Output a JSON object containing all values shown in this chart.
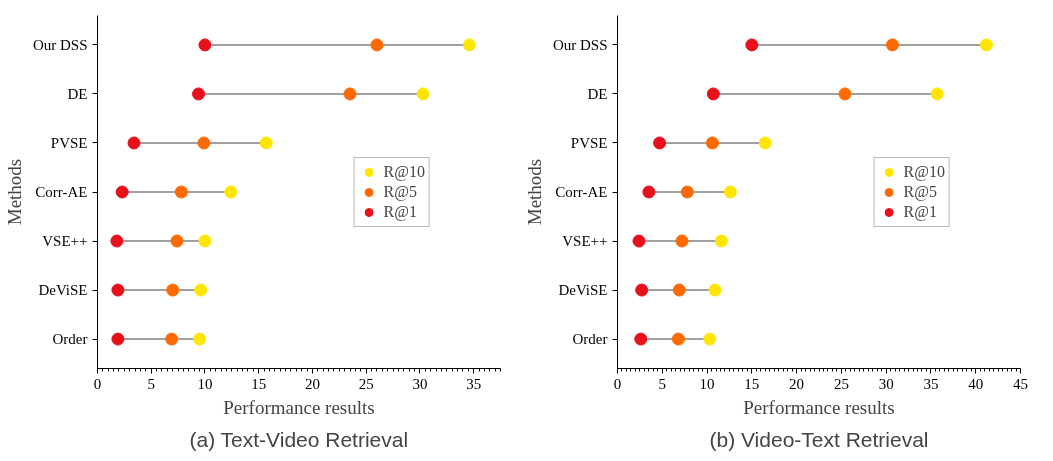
{
  "chart_data": [
    {
      "type": "scatter",
      "title": "(a) Text-Video Retrieval",
      "xlabel": "Performance results",
      "ylabel": "Methods",
      "orientation": "horizontal",
      "categories": [
        "Our DSS",
        "DE",
        "PVSE",
        "Corr-AE",
        "VSE++",
        "DeViSE",
        "Order"
      ],
      "xlim": [
        0,
        37.5
      ],
      "xticks": [
        0,
        5,
        10,
        15,
        20,
        25,
        30,
        35
      ],
      "legend": "right",
      "grid": false,
      "marker": "circle",
      "series": [
        {
          "name": "R@10",
          "color": "#ffe600",
          "values": [
            34.6,
            30.3,
            15.7,
            12.4,
            10.0,
            9.6,
            9.5
          ]
        },
        {
          "name": "R@5",
          "color": "#ff6a00",
          "values": [
            26.0,
            23.5,
            9.9,
            7.8,
            7.4,
            7.0,
            6.9
          ]
        },
        {
          "name": "R@1",
          "color": "#e8101a",
          "values": [
            10.0,
            9.4,
            3.4,
            2.3,
            1.8,
            1.9,
            1.9
          ]
        }
      ]
    },
    {
      "type": "scatter",
      "title": "(b) Video-Text Retrieval",
      "xlabel": "Performance results",
      "ylabel": "Methods",
      "orientation": "horizontal",
      "categories": [
        "Our DSS",
        "DE",
        "PVSE",
        "Corr-AE",
        "VSE++",
        "DeViSE",
        "Order"
      ],
      "xlim": [
        0,
        45
      ],
      "xticks": [
        0,
        5,
        10,
        15,
        20,
        25,
        30,
        35,
        40,
        45
      ],
      "legend": "right",
      "grid": false,
      "marker": "circle",
      "series": [
        {
          "name": "R@10",
          "color": "#ffe600",
          "values": [
            41.2,
            35.7,
            16.5,
            12.6,
            11.6,
            10.9,
            10.3
          ]
        },
        {
          "name": "R@5",
          "color": "#ff6a00",
          "values": [
            30.7,
            25.4,
            10.6,
            7.8,
            7.2,
            6.9,
            6.8
          ]
        },
        {
          "name": "R@1",
          "color": "#e8101a",
          "values": [
            15.0,
            10.7,
            4.7,
            3.5,
            2.4,
            2.7,
            2.6
          ]
        }
      ]
    }
  ]
}
